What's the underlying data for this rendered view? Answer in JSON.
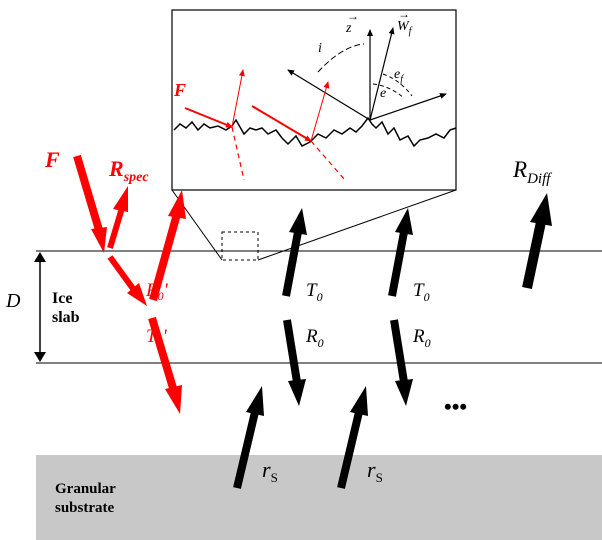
{
  "labels": {
    "D": "D",
    "ice_slab_line1": "Ice",
    "ice_slab_line2": "slab",
    "substrate_line1": "Granular",
    "substrate_line2": "substrate",
    "F_main": "F",
    "R_spec_base": "R",
    "R_spec_sub": "spec",
    "R0_prime_base": "R",
    "R0_prime_sub": "0",
    "R0_prime_mark": "'",
    "T0_prime_base": "T",
    "T0_prime_sub": "0",
    "T0_prime_mark": "'",
    "T0_base": "T",
    "T0_sub": "0",
    "R0_base": "R",
    "R0_sub": "0",
    "r_base": "r",
    "r_sub": "S",
    "R_diff_base": "R",
    "R_diff_sub": "Diff",
    "ellipsis": "•••",
    "inset_F": "F",
    "inset_z": "z",
    "inset_W_base": "W",
    "inset_W_sub": "f",
    "inset_i": "i",
    "inset_e": "e",
    "inset_ef_base": "e",
    "inset_ef_sub": "f"
  },
  "colors": {
    "red": "#ff0000",
    "black": "#000000",
    "substrate": "#c8c8c8"
  }
}
